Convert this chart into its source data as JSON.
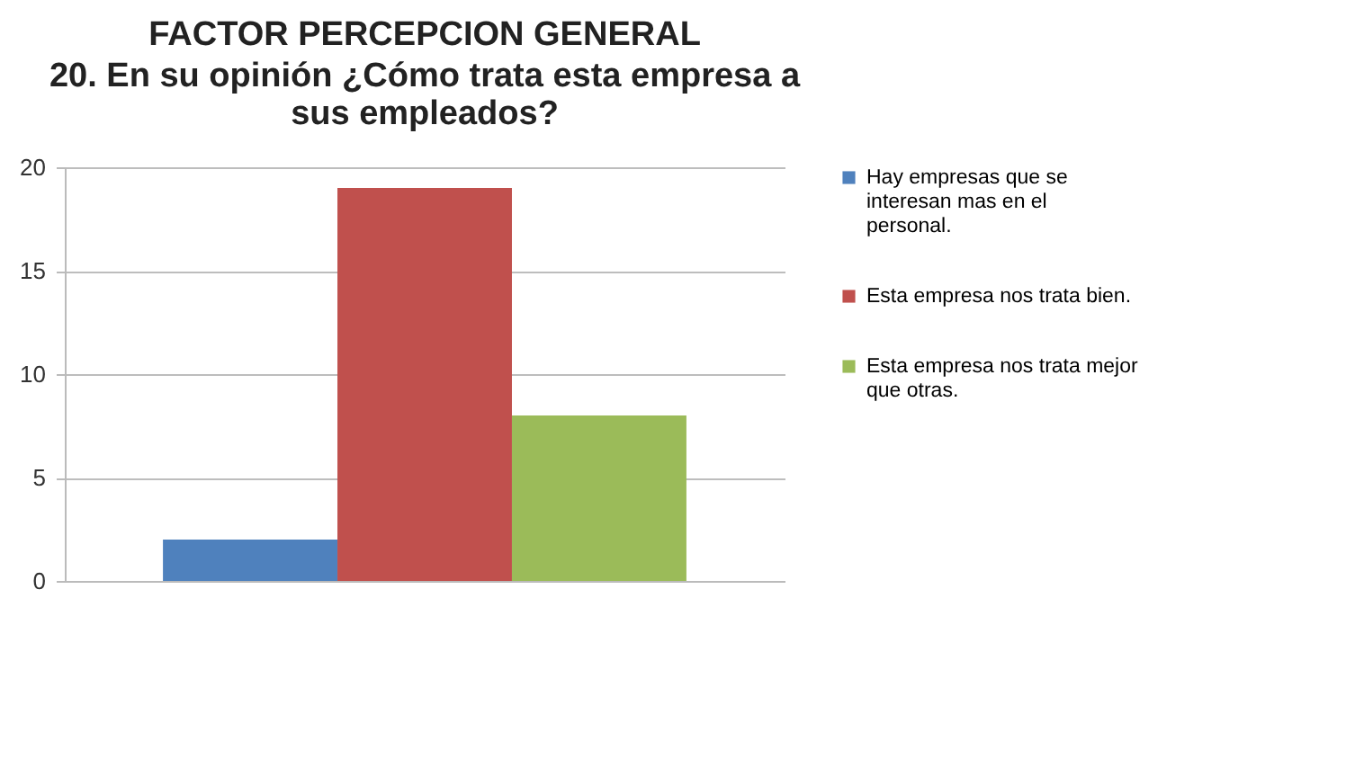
{
  "chart_data": {
    "type": "bar",
    "title": "FACTOR PERCEPCION GENERAL",
    "subtitle": "20. En su opinión ¿Cómo trata esta empresa a sus empleados?",
    "categories": [
      null
    ],
    "series": [
      {
        "name": "Hay empresas que se interesan mas en el personal.",
        "color": "#4f81bd",
        "values": [
          2
        ]
      },
      {
        "name": "Esta empresa nos trata bien.",
        "color": "#c0504d",
        "values": [
          19
        ]
      },
      {
        "name": "Esta empresa nos trata mejor que otras.",
        "color": "#9bbb59",
        "values": [
          8
        ]
      }
    ],
    "ylim": [
      0,
      20
    ],
    "yticks": [
      0,
      5,
      10,
      15,
      20
    ],
    "grid": "y",
    "legend": "right"
  }
}
